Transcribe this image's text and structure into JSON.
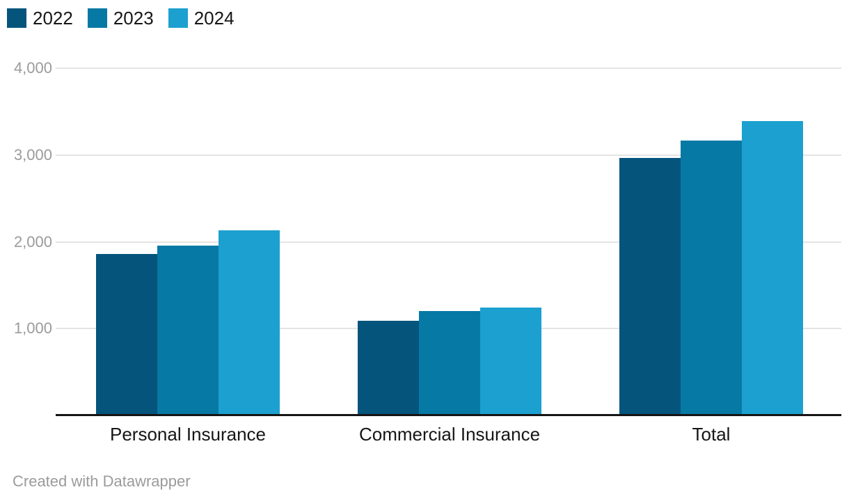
{
  "chart_data": {
    "type": "bar",
    "categories": [
      "Personal Insurance",
      "Commercial Insurance",
      "Total"
    ],
    "series": [
      {
        "name": "2022",
        "color": "#05547c",
        "values": [
          1860,
          1090,
          2965
        ]
      },
      {
        "name": "2023",
        "color": "#0679a4",
        "values": [
          1955,
          1200,
          3165
        ]
      },
      {
        "name": "2024",
        "color": "#1ca0cf",
        "values": [
          2130,
          1245,
          3390
        ]
      }
    ],
    "ylim": [
      0,
      4000
    ],
    "yticks": [
      1000,
      2000,
      3000,
      4000
    ],
    "ytick_labels": [
      "1,000",
      "2,000",
      "3,000",
      "4,000"
    ],
    "grid": "horizontal",
    "gridline_color": "#e4e4e4",
    "axis_line_color": "#151515",
    "legend_position": "top-left",
    "title": "",
    "xlabel": "",
    "ylabel": ""
  },
  "footer": {
    "credit": "Created with Datawrapper"
  }
}
